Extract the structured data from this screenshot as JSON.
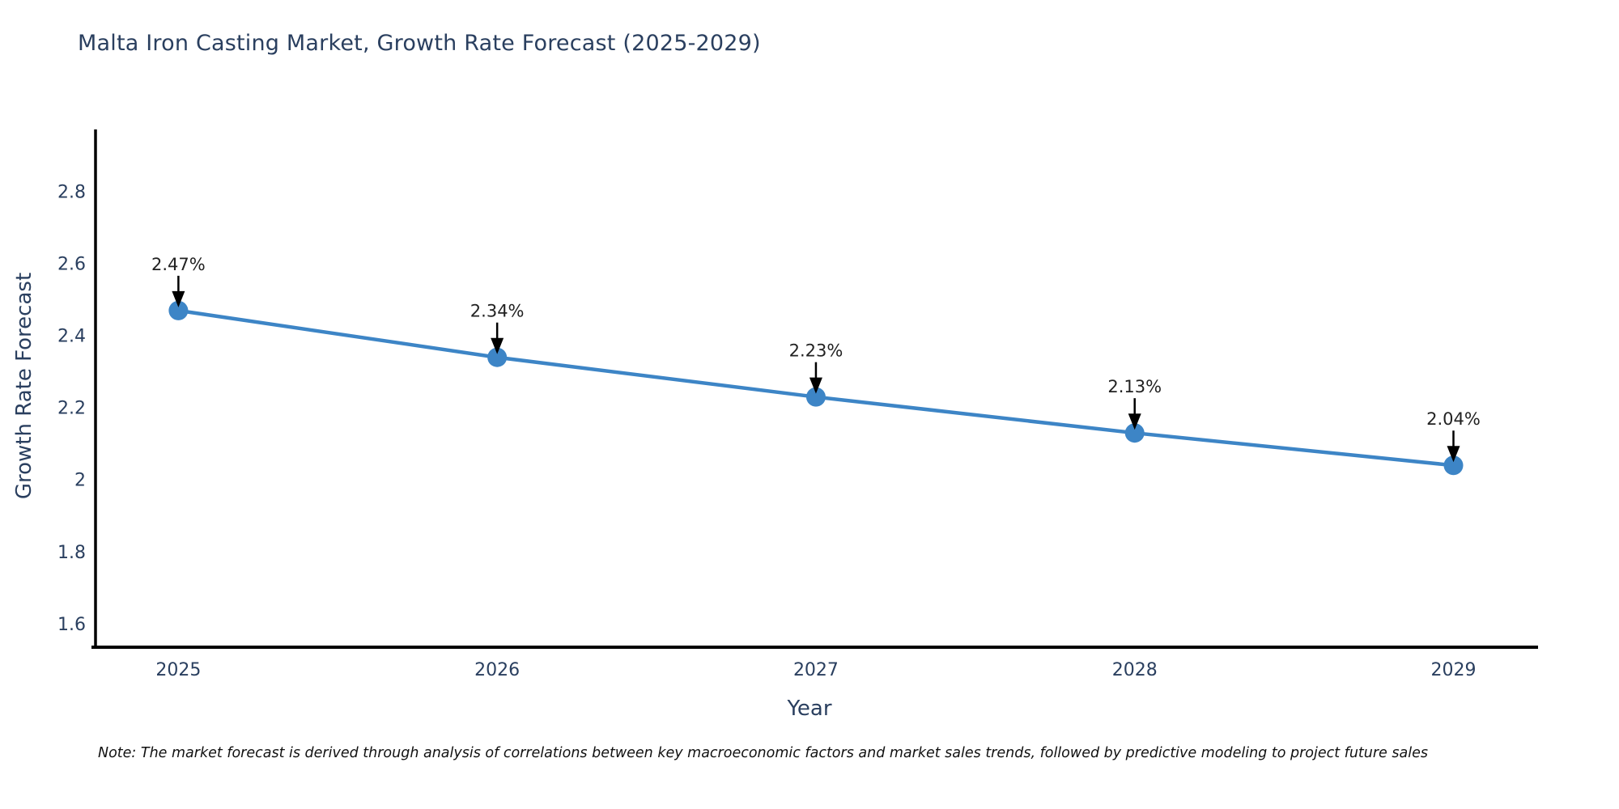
{
  "title": {
    "text": "Malta Iron Casting Market, Growth Rate Forecast (2025-2029)"
  },
  "note": {
    "text": "Note: The market forecast is derived through analysis of correlations between key macroeconomic factors and market sales trends, followed by predictive modeling to project future sales"
  },
  "chart_data": {
    "type": "line",
    "title": "Malta Iron Casting Market, Growth Rate Forecast (2025-2029)",
    "xlabel": "Year",
    "ylabel": "Growth Rate Forecast",
    "x": [
      2025,
      2026,
      2027,
      2028,
      2029
    ],
    "series": [
      {
        "name": "Growth Rate Forecast",
        "values": [
          2.47,
          2.34,
          2.23,
          2.13,
          2.04
        ],
        "point_labels": [
          "2.47%",
          "2.34%",
          "2.23%",
          "2.13%",
          "2.04%"
        ]
      }
    ],
    "xlim": [
      2024.74,
      2029.24
    ],
    "ylim": [
      1.535,
      2.973
    ],
    "xticks": {
      "values": [
        2025,
        2026,
        2027,
        2028,
        2029
      ],
      "labels": [
        "2025",
        "2026",
        "2027",
        "2028",
        "2029"
      ]
    },
    "yticks": {
      "values": [
        1.6,
        1.8,
        2.0,
        2.2,
        2.4,
        2.6,
        2.8
      ],
      "labels": [
        "1.6",
        "1.8",
        "2",
        "2.2",
        "2.4",
        "2.6",
        "2.8"
      ]
    },
    "grid": false,
    "legend": "none",
    "annotations_have_arrows": true,
    "colors": {
      "line": "#3d85c6",
      "marker": "#3d85c6",
      "axis": "#000000",
      "tick_text": "#2a3f5f",
      "title_text": "#2a3f5f",
      "annotation_text": "#222222",
      "annotation_arrow": "#000000",
      "note_text": "#111111",
      "background": "#ffffff"
    }
  }
}
